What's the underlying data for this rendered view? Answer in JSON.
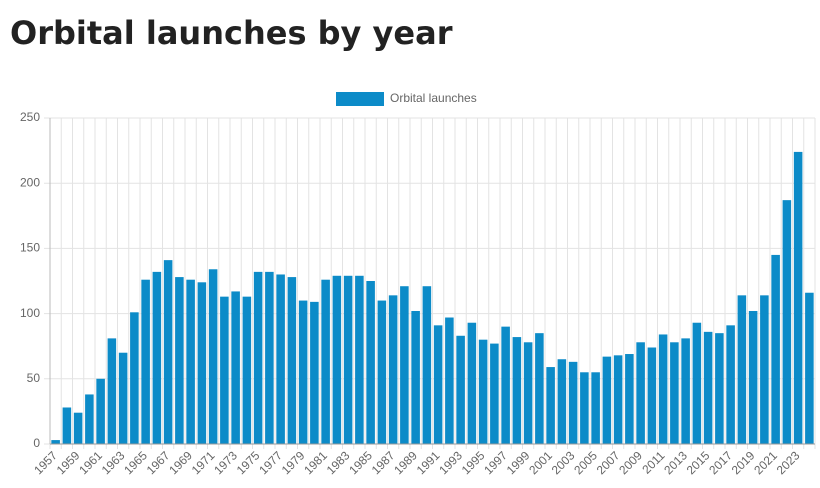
{
  "chart_data": {
    "type": "bar",
    "title": "Orbital launches by year",
    "categories": [
      "1957",
      null,
      "1959",
      null,
      "1961",
      null,
      "1963",
      null,
      "1965",
      null,
      "1967",
      null,
      "1969",
      null,
      "1971",
      null,
      "1973",
      null,
      "1975",
      null,
      "1977",
      null,
      "1979",
      null,
      "1981",
      null,
      "1983",
      null,
      "1985",
      null,
      "1987",
      null,
      "1989",
      null,
      "1991",
      null,
      "1993",
      null,
      "1995",
      null,
      "1997",
      null,
      "1999",
      null,
      "2001",
      null,
      "2003",
      null,
      "2005",
      null,
      "2007",
      null,
      "2009",
      null,
      "2011",
      null,
      "2013",
      null,
      "2015",
      null,
      "2017",
      null,
      "2019",
      null,
      "2021",
      null,
      "2023",
      null
    ],
    "series": [
      {
        "name": "Orbital launches",
        "color": "#0c8bc8",
        "values": [
          3,
          28,
          24,
          38,
          50,
          81,
          70,
          101,
          126,
          132,
          141,
          128,
          126,
          124,
          134,
          113,
          117,
          113,
          132,
          132,
          130,
          128,
          110,
          109,
          126,
          129,
          129,
          129,
          125,
          110,
          114,
          121,
          102,
          121,
          91,
          97,
          83,
          93,
          80,
          77,
          90,
          82,
          78,
          85,
          59,
          65,
          63,
          55,
          55,
          67,
          68,
          69,
          78,
          74,
          84,
          78,
          81,
          93,
          86,
          85,
          91,
          114,
          102,
          114,
          145,
          187,
          224,
          116
        ]
      }
    ],
    "ylim": [
      0,
      250
    ],
    "yticks": [
      0,
      50,
      100,
      150,
      200,
      250
    ],
    "grid": true,
    "legend": "top"
  }
}
